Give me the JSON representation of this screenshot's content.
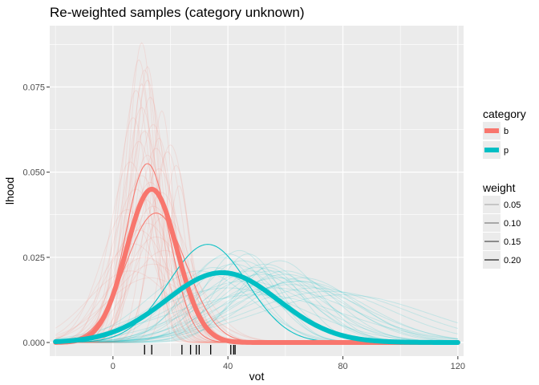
{
  "chart_data": {
    "type": "line",
    "title": "Re-weighted samples (category unknown)",
    "xlabel": "vot",
    "ylabel": "lhood",
    "xlim": [
      -22,
      122
    ],
    "ylim": [
      -0.004,
      0.093
    ],
    "x_ticks": [
      0,
      40,
      80,
      120
    ],
    "x_tick_labels": [
      "0",
      "40",
      "80",
      "120"
    ],
    "y_ticks": [
      0.0,
      0.025,
      0.05,
      0.075
    ],
    "y_tick_labels": [
      "0.000",
      "0.025",
      "0.050",
      "0.075"
    ],
    "grid": true,
    "legend_position": "right",
    "colors": {
      "b": "#F8766D",
      "p": "#00BFC4",
      "panel": "#EBEBEB",
      "grid": "#FFFFFF"
    },
    "legends": {
      "category": {
        "title": "category",
        "entries": [
          "b",
          "p"
        ]
      },
      "weight": {
        "title": "weight",
        "entries": [
          "0.05",
          "0.10",
          "0.15",
          "0.20"
        ]
      }
    },
    "series": [
      {
        "name": "b",
        "kind": "mean",
        "mu": 13.5,
        "sd": 8.8,
        "peak": 0.045
      },
      {
        "name": "p",
        "kind": "mean",
        "mu": 38,
        "sd": 19.5,
        "peak": 0.0205
      },
      {
        "name": "b",
        "kind": "highlight",
        "mu": 12,
        "sd": 7.6,
        "peak": 0.0525
      },
      {
        "name": "b",
        "kind": "highlight",
        "mu": 15,
        "sd": 10.5,
        "peak": 0.038
      },
      {
        "name": "p",
        "kind": "highlight",
        "mu": 33,
        "sd": 13.8,
        "peak": 0.0288
      }
    ],
    "sample_curves": {
      "b": [
        {
          "mu": 10,
          "sd": 4.5,
          "peak": 0.088
        },
        {
          "mu": 9,
          "sd": 4.8,
          "peak": 0.083
        },
        {
          "mu": 11,
          "sd": 5.0,
          "peak": 0.08
        },
        {
          "mu": 12,
          "sd": 5.2,
          "peak": 0.077
        },
        {
          "mu": 8,
          "sd": 5.5,
          "peak": 0.074
        },
        {
          "mu": 13,
          "sd": 5.6,
          "peak": 0.072
        },
        {
          "mu": 10,
          "sd": 6.0,
          "peak": 0.069
        },
        {
          "mu": 7,
          "sd": 5.8,
          "peak": 0.066
        },
        {
          "mu": 14,
          "sd": 6.2,
          "peak": 0.064
        },
        {
          "mu": 11,
          "sd": 6.5,
          "peak": 0.062
        },
        {
          "mu": 9,
          "sd": 6.8,
          "peak": 0.059
        },
        {
          "mu": 15,
          "sd": 6.6,
          "peak": 0.057
        },
        {
          "mu": 12,
          "sd": 7.0,
          "peak": 0.055
        },
        {
          "mu": 6,
          "sd": 7.2,
          "peak": 0.053
        },
        {
          "mu": 16,
          "sd": 7.4,
          "peak": 0.051
        },
        {
          "mu": 10,
          "sd": 7.8,
          "peak": 0.049
        },
        {
          "mu": 13,
          "sd": 8.2,
          "peak": 0.047
        },
        {
          "mu": 8,
          "sd": 8.5,
          "peak": 0.045
        },
        {
          "mu": 17,
          "sd": 8.0,
          "peak": 0.044
        },
        {
          "mu": 11,
          "sd": 9.0,
          "peak": 0.042
        },
        {
          "mu": 14,
          "sd": 9.5,
          "peak": 0.04
        },
        {
          "mu": 5,
          "sd": 9.2,
          "peak": 0.039
        },
        {
          "mu": 18,
          "sd": 9.8,
          "peak": 0.037
        },
        {
          "mu": 12,
          "sd": 10.5,
          "peak": 0.035
        },
        {
          "mu": 9,
          "sd": 11.0,
          "peak": 0.033
        },
        {
          "mu": 15,
          "sd": 11.5,
          "peak": 0.031
        },
        {
          "mu": 7,
          "sd": 12.0,
          "peak": 0.029
        },
        {
          "mu": 20,
          "sd": 6.0,
          "peak": 0.058
        },
        {
          "mu": 19,
          "sd": 5.5,
          "peak": 0.056
        },
        {
          "mu": 22,
          "sd": 4.5,
          "peak": 0.052
        },
        {
          "mu": 17,
          "sd": 4.0,
          "peak": 0.068
        },
        {
          "mu": 23,
          "sd": 3.8,
          "peak": 0.046
        },
        {
          "mu": 18,
          "sd": 12.5,
          "peak": 0.027
        },
        {
          "mu": 11,
          "sd": 13.0,
          "peak": 0.025
        },
        {
          "mu": 14,
          "sd": 14.0,
          "peak": 0.023
        },
        {
          "mu": 6,
          "sd": 14.5,
          "peak": 0.021
        },
        {
          "mu": 10,
          "sd": 3.8,
          "peak": 0.076
        },
        {
          "mu": 12,
          "sd": 4.2,
          "peak": 0.081
        },
        {
          "mu": 16,
          "sd": 5.0,
          "peak": 0.06
        },
        {
          "mu": 13,
          "sd": 15.5,
          "peak": 0.019
        }
      ],
      "p": [
        {
          "mu": 40,
          "sd": 14,
          "peak": 0.026
        },
        {
          "mu": 45,
          "sd": 15,
          "peak": 0.024
        },
        {
          "mu": 50,
          "sd": 17,
          "peak": 0.022
        },
        {
          "mu": 55,
          "sd": 18,
          "peak": 0.021
        },
        {
          "mu": 60,
          "sd": 20,
          "peak": 0.02
        },
        {
          "mu": 58,
          "sd": 22,
          "peak": 0.019
        },
        {
          "mu": 65,
          "sd": 23,
          "peak": 0.018
        },
        {
          "mu": 48,
          "sd": 19,
          "peak": 0.021
        },
        {
          "mu": 42,
          "sd": 16,
          "peak": 0.023
        },
        {
          "mu": 52,
          "sd": 21,
          "peak": 0.02
        },
        {
          "mu": 38,
          "sd": 13,
          "peak": 0.025
        },
        {
          "mu": 62,
          "sd": 25,
          "peak": 0.017
        },
        {
          "mu": 70,
          "sd": 26,
          "peak": 0.016
        },
        {
          "mu": 35,
          "sd": 15,
          "peak": 0.022
        },
        {
          "mu": 46,
          "sd": 24,
          "peak": 0.018
        },
        {
          "mu": 56,
          "sd": 27,
          "peak": 0.016
        },
        {
          "mu": 75,
          "sd": 28,
          "peak": 0.015
        },
        {
          "mu": 44,
          "sd": 12,
          "peak": 0.027
        },
        {
          "mu": 53,
          "sd": 16,
          "peak": 0.023
        },
        {
          "mu": 60,
          "sd": 17,
          "peak": 0.021
        },
        {
          "mu": 66,
          "sd": 19,
          "peak": 0.019
        },
        {
          "mu": 36,
          "sd": 20,
          "peak": 0.02
        },
        {
          "mu": 30,
          "sd": 18,
          "peak": 0.021
        },
        {
          "mu": 50,
          "sd": 30,
          "peak": 0.014
        },
        {
          "mu": 80,
          "sd": 30,
          "peak": 0.014
        },
        {
          "mu": 58,
          "sd": 14,
          "peak": 0.024
        },
        {
          "mu": 47,
          "sd": 11,
          "peak": 0.026
        },
        {
          "mu": 64,
          "sd": 21,
          "peak": 0.018
        },
        {
          "mu": 40,
          "sd": 26,
          "peak": 0.016
        },
        {
          "mu": 54,
          "sd": 12,
          "peak": 0.022
        }
      ]
    },
    "rug_x": [
      11,
      13.5,
      24,
      27,
      29,
      30,
      34,
      41,
      42,
      42.5
    ]
  }
}
